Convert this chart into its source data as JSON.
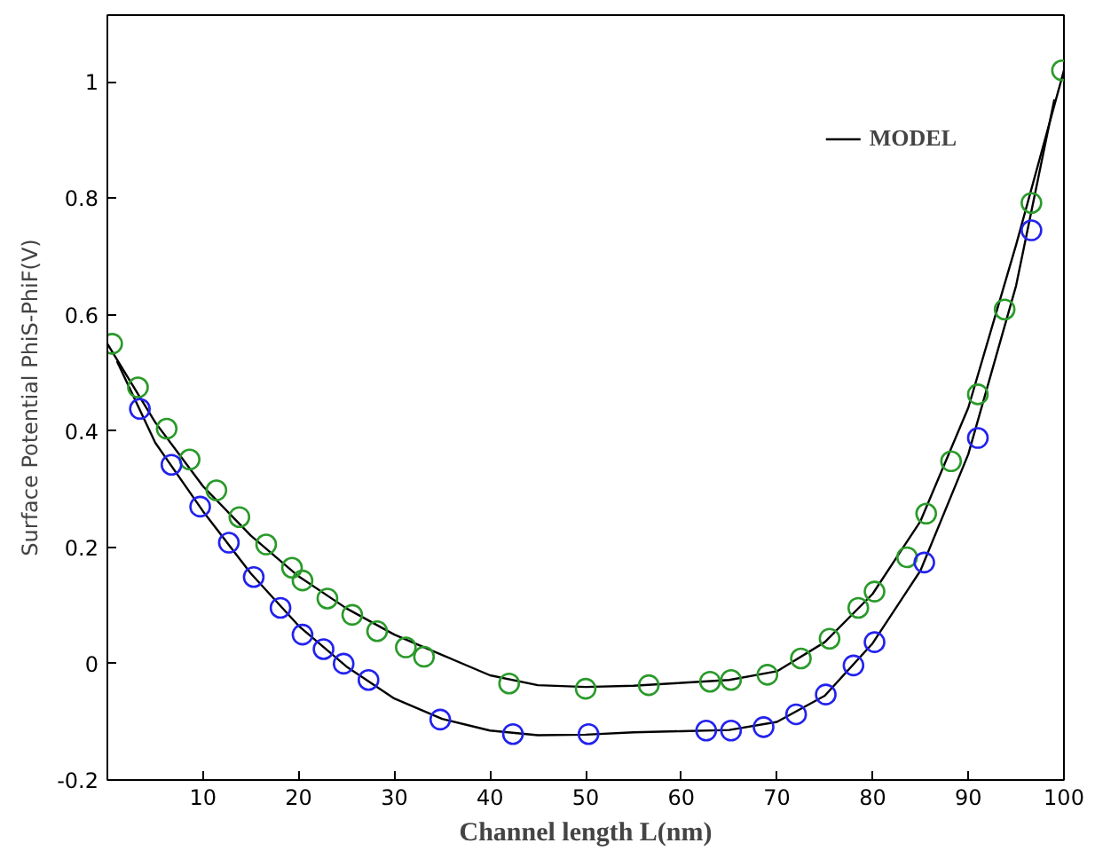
{
  "chart_data": {
    "type": "scatter",
    "xlabel": "Channel length L(nm)",
    "ylabel": "Surface Potential PhiS-PhiF(V)",
    "xlim": [
      0,
      100
    ],
    "ylim": [
      -0.2,
      1.115
    ],
    "xticks": [
      10,
      20,
      30,
      40,
      50,
      60,
      70,
      80,
      90,
      100
    ],
    "yticks": [
      -0.2,
      0,
      0.2,
      0.4,
      0.6,
      0.8,
      1
    ],
    "grid": false,
    "legend": "top right",
    "series": [
      {
        "marker": "circle",
        "color": "#2a9a2a",
        "x": [
          0.5,
          3.2,
          6.2,
          8.6,
          11.4,
          13.8,
          16.6,
          19.3,
          20.4,
          23,
          25.6,
          28.2,
          31.2,
          33.1,
          42,
          50,
          56.6,
          63,
          65.2,
          69,
          72.5,
          75.5,
          78.5,
          80.2,
          83.6,
          85.6,
          88.2,
          91,
          93.8,
          96.6,
          99.8
        ],
        "values": [
          0.55,
          0.475,
          0.404,
          0.351,
          0.298,
          0.252,
          0.205,
          0.165,
          0.143,
          0.112,
          0.084,
          0.056,
          0.028,
          0.012,
          -0.034,
          -0.043,
          -0.037,
          -0.031,
          -0.028,
          -0.019,
          0.009,
          0.043,
          0.096,
          0.124,
          0.183,
          0.258,
          0.348,
          0.463,
          0.609,
          0.792,
          1.02
        ]
      },
      {
        "marker": "circle",
        "color": "#2222ee",
        "x": [
          3.4,
          6.7,
          9.7,
          12.7,
          15.3,
          18.1,
          20.4,
          22.6,
          24.7,
          27.3,
          34.8,
          42.4,
          50.3,
          62.6,
          65.2,
          68.6,
          72,
          75.1,
          78,
          80.2,
          85.4,
          91,
          96.6
        ],
        "values": [
          0.438,
          0.342,
          0.27,
          0.208,
          0.149,
          0.096,
          0.05,
          0.025,
          0,
          -0.028,
          -0.096,
          -0.121,
          -0.121,
          -0.115,
          -0.115,
          -0.109,
          -0.087,
          -0.053,
          -0.003,
          0.037,
          0.174,
          0.388,
          0.745
        ]
      },
      {
        "type": "line",
        "name": "MODEL",
        "color": "#000000",
        "line_style": "solid",
        "marker": "none",
        "x": [
          0,
          5,
          10,
          15,
          20,
          25,
          30,
          35,
          40,
          45,
          50,
          55,
          60,
          65,
          70,
          75,
          80,
          85,
          90,
          95,
          100
        ],
        "values": [
          0.55,
          0.415,
          0.305,
          0.22,
          0.15,
          0.095,
          0.05,
          0.015,
          -0.02,
          -0.037,
          -0.04,
          -0.038,
          -0.033,
          -0.028,
          -0.013,
          0.037,
          0.12,
          0.245,
          0.44,
          0.72,
          1.02
        ]
      },
      {
        "type": "line",
        "color": "#000000",
        "line_style": "solid",
        "marker": "none",
        "x": [
          1,
          5,
          10,
          15,
          20,
          25,
          30,
          35,
          40,
          45,
          50,
          55,
          60,
          65,
          70,
          75,
          80,
          85,
          90,
          95,
          99
        ],
        "values": [
          0.52,
          0.38,
          0.262,
          0.155,
          0.065,
          -0.005,
          -0.06,
          -0.095,
          -0.115,
          -0.123,
          -0.122,
          -0.118,
          -0.116,
          -0.114,
          -0.1,
          -0.055,
          0.035,
          0.16,
          0.36,
          0.65,
          0.97
        ]
      }
    ]
  }
}
